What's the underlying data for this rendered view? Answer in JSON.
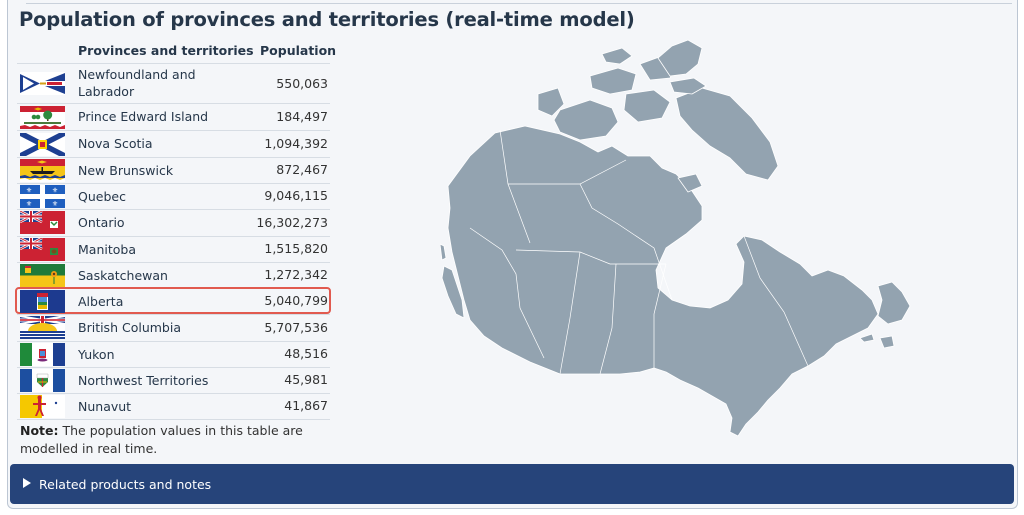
{
  "title": "Population of provinces and territories (real-time model)",
  "table": {
    "headers": {
      "province": "Provinces and territories",
      "population": "Population"
    },
    "rows": [
      {
        "name_line1": "Newfoundland and",
        "name_line2": "Labrador",
        "population": "550,063",
        "flag": "newfoundland-labrador-flag"
      },
      {
        "name": "Prince Edward Island",
        "population": "184,497",
        "flag": "pei-flag"
      },
      {
        "name": "Nova Scotia",
        "population": "1,094,392",
        "flag": "nova-scotia-flag"
      },
      {
        "name": "New Brunswick",
        "population": "872,467",
        "flag": "new-brunswick-flag"
      },
      {
        "name": "Quebec",
        "population": "9,046,115",
        "flag": "quebec-flag"
      },
      {
        "name": "Ontario",
        "population": "16,302,273",
        "flag": "ontario-flag"
      },
      {
        "name": "Manitoba",
        "population": "1,515,820",
        "flag": "manitoba-flag"
      },
      {
        "name": "Saskatchewan",
        "population": "1,272,342",
        "flag": "saskatchewan-flag"
      },
      {
        "name": "Alberta",
        "population": "5,040,799",
        "flag": "alberta-flag",
        "highlighted": true
      },
      {
        "name": "British Columbia",
        "population": "5,707,536",
        "flag": "british-columbia-flag"
      },
      {
        "name": "Yukon",
        "population": "48,516",
        "flag": "yukon-flag"
      },
      {
        "name": "Northwest Territories",
        "population": "45,981",
        "flag": "northwest-territories-flag"
      },
      {
        "name": "Nunavut",
        "population": "41,867",
        "flag": "nunavut-flag"
      }
    ]
  },
  "note": {
    "label": "Note:",
    "text": " The population values in this table are modelled in real time."
  },
  "related": {
    "label": "Related products and notes",
    "icon": "triangle-right-icon"
  },
  "colors": {
    "heading": "#26374a",
    "highlight_border": "#e15a4f",
    "related_bg": "#26447a",
    "map_fill": "#93a3b0",
    "panel_bg": "#f4f6f9"
  }
}
